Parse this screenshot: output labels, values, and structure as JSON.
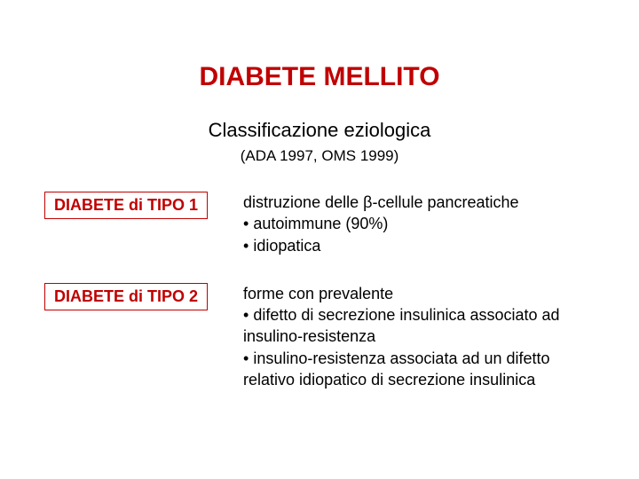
{
  "title": {
    "text": "DIABETE MELLITO",
    "fontsize": 30,
    "color": "#c00000"
  },
  "subtitle": {
    "text": "Classificazione eziologica",
    "fontsize": 22,
    "color": "#000000"
  },
  "source": {
    "text": "(ADA 1997, OMS 1999)",
    "fontsize": 17,
    "color": "#000000"
  },
  "body_fontsize": 18,
  "background_color": "#ffffff",
  "sections": [
    {
      "label": "DIABETE di TIPO 1",
      "label_color": "#c00000",
      "border_color": "#c00000",
      "lines": [
        "distruzione delle β-cellule pancreatiche",
        "• autoimmune (90%)",
        "• idiopatica"
      ]
    },
    {
      "label": "DIABETE di TIPO 2",
      "label_color": "#c00000",
      "border_color": "#c00000",
      "lines": [
        "forme con prevalente",
        "• difetto di secrezione insulinica associato ad insulino-resistenza",
        "• insulino-resistenza associata ad un difetto relativo idiopatico di secrezione insulinica"
      ]
    }
  ]
}
